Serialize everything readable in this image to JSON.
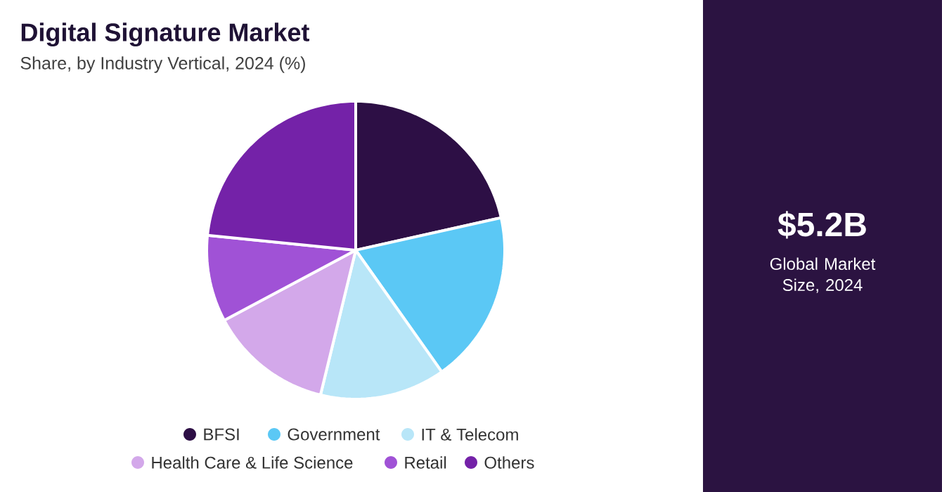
{
  "chart_data": {
    "type": "pie",
    "title": "Digital Signature Market",
    "subtitle": "Share, by Industry Vertical, 2024 (%)",
    "categories": [
      "BFSI",
      "Government",
      "IT & Telecom",
      "Health Care & Life Science",
      "Retail",
      "Others"
    ],
    "values": [
      21.5,
      18.7,
      13.6,
      13.4,
      9.4,
      23.4
    ],
    "colors": [
      "#2d0f45",
      "#5bc8f5",
      "#b8e6f8",
      "#d3a8ea",
      "#a052d6",
      "#7422a8"
    ],
    "legend": "bottom",
    "annotations": [
      "$5.2B",
      "Global Market Size, 2024"
    ]
  }
}
